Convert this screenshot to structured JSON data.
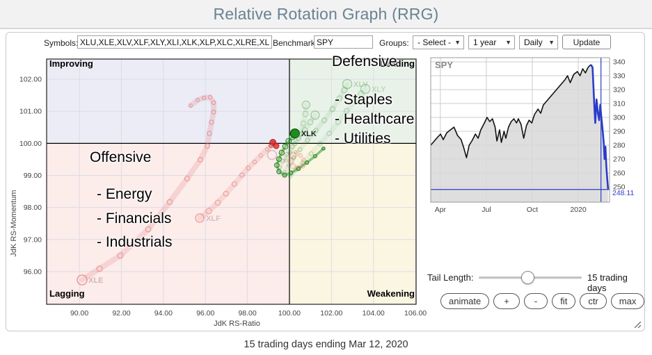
{
  "header": {
    "title": "Relative Rotation Graph (RRG)"
  },
  "toolbar": {
    "symbols_label": "Symbols:",
    "symbols_value": "XLU,XLE,XLV,XLF,XLY,XLI,XLK,XLP,XLC,XLRE,XLB",
    "benchmark_label": "Benchmark:",
    "benchmark_value": "SPY",
    "groups_label": "Groups:",
    "groups_value": "- Select -",
    "period_value": "1 year",
    "frequency_value": "Daily",
    "update_label": "Update"
  },
  "annotations": {
    "defensive_title": "Defensive",
    "defensive_items": [
      "- Staples",
      "- Healthcare",
      "- Utilities"
    ],
    "offensive_title": "Offensive",
    "offensive_items": [
      "- Energy",
      "- Financials",
      "- Industrials"
    ]
  },
  "controls": {
    "tail_length_label": "Tail Length:",
    "tail_length_value": "15 trading days",
    "buttons": [
      "animate",
      "+",
      "-",
      "fit",
      "ctr",
      "max"
    ]
  },
  "footer": {
    "caption": "15 trading days ending Mar 12, 2020"
  },
  "chart_data": [
    {
      "id": "rrg",
      "type": "scatter",
      "xlabel": "JdK RS-Ratio",
      "ylabel": "JdK RS-Momentum",
      "xlim": [
        88.44,
        106.03
      ],
      "ylim": [
        94.98,
        102.63
      ],
      "x_ticks": [
        "90.00",
        "92.00",
        "94.00",
        "96.00",
        "98.00",
        "100.00",
        "102.00",
        "104.00",
        "106.00"
      ],
      "y_ticks": [
        "102.00",
        "101.00",
        "100.00",
        "99.00",
        "98.00",
        "97.00",
        "96.00"
      ],
      "center": [
        100,
        100
      ],
      "grid_color": "#dcdce4",
      "quadrants": {
        "improving": {
          "label": "Improving",
          "bg": "#ebecf6",
          "color": "#8a92dc"
        },
        "leading": {
          "label": "Leading",
          "bg": "#e9f2e9",
          "color": "#74b274"
        },
        "lagging": {
          "label": "Lagging",
          "bg": "#fcecea",
          "color": "#f28484"
        },
        "weakening": {
          "label": "Weakening",
          "bg": "#faf6e2",
          "color": "#e2c83c"
        }
      },
      "tails": [
        {
          "symbol": "XLK",
          "color": "#1e8c1e",
          "opacity": 1,
          "lw": 1.8,
          "head_r": 6.5,
          "head_solid": true,
          "label": "XLK",
          "label_color": "#1a1a1a",
          "label_opacity": 1,
          "points": [
            [
              101.62,
              99.84
            ],
            [
              101.22,
              99.6
            ],
            [
              100.83,
              99.4
            ],
            [
              100.43,
              99.21
            ],
            [
              100.07,
              99.08
            ],
            [
              99.77,
              99.01
            ],
            [
              99.5,
              99.12
            ],
            [
              99.4,
              99.32
            ],
            [
              99.5,
              99.51
            ],
            [
              99.63,
              99.71
            ],
            [
              99.8,
              99.9
            ],
            [
              99.96,
              100.07
            ],
            [
              100.13,
              100.2
            ],
            [
              100.26,
              100.31
            ]
          ]
        },
        {
          "symbol": "XLE",
          "color": "#e06868",
          "opacity": 0.38,
          "lw": 4,
          "head_r": 7,
          "head_solid": false,
          "label": "XLE",
          "label_color": "#c0a0a0",
          "label_opacity": 0.7,
          "points": [
            [
              95.3,
              101.18
            ],
            [
              95.63,
              101.35
            ],
            [
              95.93,
              101.42
            ],
            [
              96.22,
              101.44
            ],
            [
              96.39,
              101.27
            ],
            [
              96.39,
              100.98
            ],
            [
              96.29,
              100.66
            ],
            [
              96.19,
              100.31
            ],
            [
              96.09,
              99.92
            ],
            [
              95.76,
              99.49
            ],
            [
              95.13,
              98.9
            ],
            [
              94.3,
              98.17
            ],
            [
              93.28,
              97.32
            ],
            [
              91.95,
              96.5
            ],
            [
              90.96,
              96.09
            ],
            [
              90.13,
              95.74
            ]
          ]
        },
        {
          "symbol": "XLF",
          "color": "#e06868",
          "opacity": 0.32,
          "lw": 4,
          "head_r": 6,
          "head_solid": false,
          "label": "XLF",
          "label_color": "#c0a0a0",
          "label_opacity": 0.6,
          "points": [
            [
              99.24,
              99.99
            ],
            [
              98.94,
              99.81
            ],
            [
              98.64,
              99.62
            ],
            [
              98.34,
              99.42
            ],
            [
              98.04,
              99.23
            ],
            [
              97.74,
              99.01
            ],
            [
              97.38,
              98.73
            ],
            [
              96.98,
              98.43
            ],
            [
              96.59,
              98.15
            ],
            [
              96.16,
              97.89
            ],
            [
              95.73,
              97.67
            ]
          ]
        },
        {
          "symbol": "XLV",
          "color": "#3c9a3c",
          "opacity": 0.2,
          "lw": 3.5,
          "head_r": 6.5,
          "head_solid": false,
          "label": "XLV",
          "label_color": "#8cbb8c",
          "label_opacity": 0.55,
          "points": [
            [
              99.77,
              99.1
            ],
            [
              99.97,
              99.32
            ],
            [
              100.2,
              99.55
            ],
            [
              100.5,
              99.81
            ],
            [
              100.86,
              100.1
            ],
            [
              101.26,
              100.4
            ],
            [
              101.66,
              100.72
            ],
            [
              102.05,
              101.07
            ],
            [
              102.38,
              101.4
            ],
            [
              102.62,
              101.66
            ],
            [
              102.75,
              101.85
            ]
          ]
        },
        {
          "symbol": "XLY",
          "color": "#3c9a3c",
          "opacity": 0.15,
          "lw": 3.5,
          "head_r": 6.5,
          "head_solid": false,
          "label": "XLY",
          "label_color": "#8cbb8c",
          "label_opacity": 0.45,
          "points": [
            [
              100.03,
              98.97
            ],
            [
              100.3,
              99.17
            ],
            [
              100.63,
              99.4
            ],
            [
              101.03,
              99.68
            ],
            [
              101.46,
              99.99
            ],
            [
              101.89,
              100.31
            ],
            [
              102.32,
              100.66
            ],
            [
              102.72,
              101.01
            ],
            [
              103.11,
              101.31
            ],
            [
              103.41,
              101.55
            ],
            [
              103.61,
              101.7
            ]
          ]
        },
        {
          "symbol": "",
          "color": "#3c9a3c",
          "opacity": 0.18,
          "lw": 3.5,
          "head_r": 6,
          "head_solid": false,
          "label": "",
          "label_color": "#8cbb8c",
          "label_opacity": 0,
          "points": [
            [
              99.54,
              99.25
            ],
            [
              99.67,
              99.45
            ],
            [
              99.87,
              99.66
            ],
            [
              100.13,
              99.9
            ],
            [
              100.43,
              100.16
            ],
            [
              100.73,
              100.42
            ],
            [
              100.99,
              100.66
            ],
            [
              101.22,
              100.88
            ]
          ]
        },
        {
          "symbol": "",
          "color": "#3c9a3c",
          "opacity": 0.15,
          "lw": 3.5,
          "head_r": 5.5,
          "head_solid": false,
          "label": "",
          "label_color": "#8cbb8c",
          "label_opacity": 0,
          "points": [
            [
              99.83,
              99.47
            ],
            [
              100.03,
              99.71
            ],
            [
              100.26,
              99.99
            ],
            [
              100.49,
              100.29
            ],
            [
              100.66,
              100.62
            ],
            [
              100.76,
              100.92
            ],
            [
              100.79,
              101.2
            ]
          ]
        },
        {
          "symbol": "",
          "color": "#e06868",
          "opacity": 0.18,
          "lw": 3,
          "head_r": 4.5,
          "head_solid": false,
          "label": "",
          "label_color": "#c0a0a0",
          "label_opacity": 0,
          "points": [
            [
              100.3,
              99.73
            ],
            [
              100.53,
              99.62
            ],
            [
              100.69,
              99.47
            ],
            [
              100.63,
              99.29
            ],
            [
              100.4,
              99.23
            ],
            [
              100.17,
              99.29
            ],
            [
              100.07,
              99.45
            ],
            [
              100.17,
              99.62
            ]
          ]
        }
      ],
      "markers": [
        {
          "x": 99.21,
          "y": 100.03,
          "r": 4.5,
          "color": "#e63030",
          "opacity": 0.9,
          "open": false
        },
        {
          "x": 99.37,
          "y": 99.92,
          "r": 4,
          "color": "#e63030",
          "opacity": 0.85,
          "open": false
        },
        {
          "x": 99.12,
          "y": 99.93,
          "r": 3,
          "color": "#e86060",
          "opacity": 0.6,
          "open": false
        },
        {
          "x": 99.17,
          "y": 99.64,
          "r": 6.5,
          "color": "#a88c8c",
          "opacity": 0.45,
          "open": true
        }
      ]
    },
    {
      "id": "spy",
      "type": "area",
      "title": "SPY",
      "ylim": [
        239,
        343
      ],
      "y_ticks": [
        "340",
        "330",
        "320",
        "310",
        "300",
        "290",
        "280",
        "270",
        "260",
        "250"
      ],
      "x_ticks": [
        {
          "t": 0.054,
          "label": "Apr"
        },
        {
          "t": 0.311,
          "label": "Jul"
        },
        {
          "t": 0.568,
          "label": "Oct"
        },
        {
          "t": 0.825,
          "label": "2020"
        }
      ],
      "hline": 248.11,
      "hline_label": "248.11",
      "vline_t": 0.952,
      "blue_from": 55,
      "line_color": "#111111",
      "area_color": "#d8d8d8",
      "blue_color": "#2b3cc8",
      "grid_color": "#cccccc",
      "series": [
        [
          0,
          280
        ],
        [
          0.02,
          283
        ],
        [
          0.04,
          286
        ],
        [
          0.055,
          288
        ],
        [
          0.07,
          284
        ],
        [
          0.09,
          289
        ],
        [
          0.11,
          291
        ],
        [
          0.13,
          293
        ],
        [
          0.15,
          287
        ],
        [
          0.17,
          284
        ],
        [
          0.185,
          278
        ],
        [
          0.2,
          271
        ],
        [
          0.215,
          280
        ],
        [
          0.23,
          283
        ],
        [
          0.25,
          288
        ],
        [
          0.265,
          285
        ],
        [
          0.28,
          291
        ],
        [
          0.3,
          296
        ],
        [
          0.315,
          300
        ],
        [
          0.33,
          297
        ],
        [
          0.345,
          299
        ],
        [
          0.36,
          293
        ],
        [
          0.37,
          283
        ],
        [
          0.385,
          291
        ],
        [
          0.395,
          282
        ],
        [
          0.41,
          290
        ],
        [
          0.42,
          285
        ],
        [
          0.435,
          293
        ],
        [
          0.45,
          297
        ],
        [
          0.465,
          299
        ],
        [
          0.48,
          296
        ],
        [
          0.49,
          299
        ],
        [
          0.505,
          295
        ],
        [
          0.52,
          285
        ],
        [
          0.535,
          294
        ],
        [
          0.55,
          298
        ],
        [
          0.565,
          296
        ],
        [
          0.58,
          302
        ],
        [
          0.6,
          306
        ],
        [
          0.615,
          303
        ],
        [
          0.63,
          309
        ],
        [
          0.65,
          312
        ],
        [
          0.67,
          315
        ],
        [
          0.69,
          318
        ],
        [
          0.71,
          321
        ],
        [
          0.73,
          324
        ],
        [
          0.75,
          327
        ],
        [
          0.765,
          330
        ],
        [
          0.78,
          325
        ],
        [
          0.8,
          331
        ],
        [
          0.82,
          333
        ],
        [
          0.835,
          330
        ],
        [
          0.85,
          335
        ],
        [
          0.865,
          332
        ],
        [
          0.88,
          336
        ],
        [
          0.895,
          338
        ],
        [
          0.905,
          336
        ],
        [
          0.915,
          308
        ],
        [
          0.92,
          296
        ],
        [
          0.927,
          313
        ],
        [
          0.935,
          303
        ],
        [
          0.942,
          298
        ],
        [
          0.948,
          309
        ],
        [
          0.955,
          299
        ],
        [
          0.962,
          290
        ],
        [
          0.968,
          281
        ],
        [
          0.972,
          270
        ],
        [
          0.977,
          279
        ],
        [
          0.982,
          265
        ],
        [
          0.987,
          256
        ],
        [
          0.992,
          248.11
        ]
      ]
    }
  ]
}
